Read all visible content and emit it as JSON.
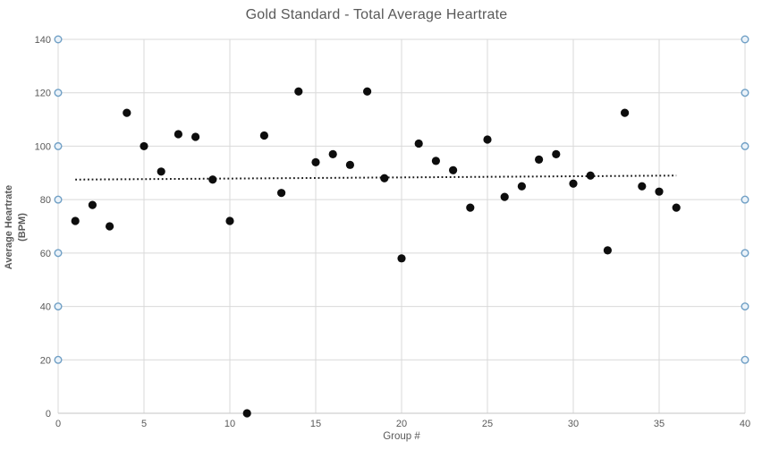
{
  "window": {
    "background_color": "#ffffff"
  },
  "chart_data": {
    "type": "scatter",
    "title": "Gold Standard - Total Average Heartrate",
    "xlabel": "Group #",
    "ylabel": "Average Heartrate (BPM)",
    "ylabel_lines": [
      "Average Heartrate",
      "(BPM)"
    ],
    "xlim": [
      0,
      40
    ],
    "ylim": [
      0,
      140
    ],
    "x_ticks": [
      0,
      5,
      10,
      15,
      20,
      25,
      30,
      35,
      40
    ],
    "y_ticks": [
      0,
      20,
      40,
      60,
      80,
      100,
      120,
      140
    ],
    "grid": true,
    "legend": "none",
    "series": [
      {
        "name": "Total Average Heartrate",
        "marker": "filled-circle",
        "x": [
          1,
          2,
          3,
          4,
          5,
          6,
          7,
          8,
          9,
          10,
          11,
          12,
          13,
          14,
          15,
          16,
          17,
          18,
          19,
          20,
          21,
          22,
          23,
          24,
          25,
          26,
          27,
          28,
          29,
          30,
          31,
          32,
          33,
          34,
          35,
          36
        ],
        "y": [
          72,
          78,
          70,
          112.5,
          100,
          90.5,
          104.5,
          103.5,
          87.5,
          72,
          0,
          104,
          82.5,
          120.5,
          94,
          97,
          93,
          120.5,
          88,
          58,
          101,
          94.5,
          91,
          77,
          102.5,
          81,
          85,
          95,
          97,
          86,
          89,
          61,
          112.5,
          85,
          83,
          77
        ]
      }
    ],
    "trendline": {
      "style": "dotted",
      "x1": 1,
      "y1": 87.5,
      "x2": 36,
      "y2": 89
    },
    "gridline_selection_handles": {
      "visible": true,
      "y_values": [
        20,
        40,
        60,
        80,
        100,
        120,
        140
      ],
      "sides": [
        "left",
        "right"
      ]
    },
    "colors": {
      "point": "#0d0d0d",
      "trendline": "#1a1a1a",
      "gridline": "#d9d9d9",
      "axis_line": "#c6c6c6",
      "text": "#595959",
      "handle_stroke": "#6f9fc5",
      "handle_fill": "#eaf2f9"
    }
  }
}
